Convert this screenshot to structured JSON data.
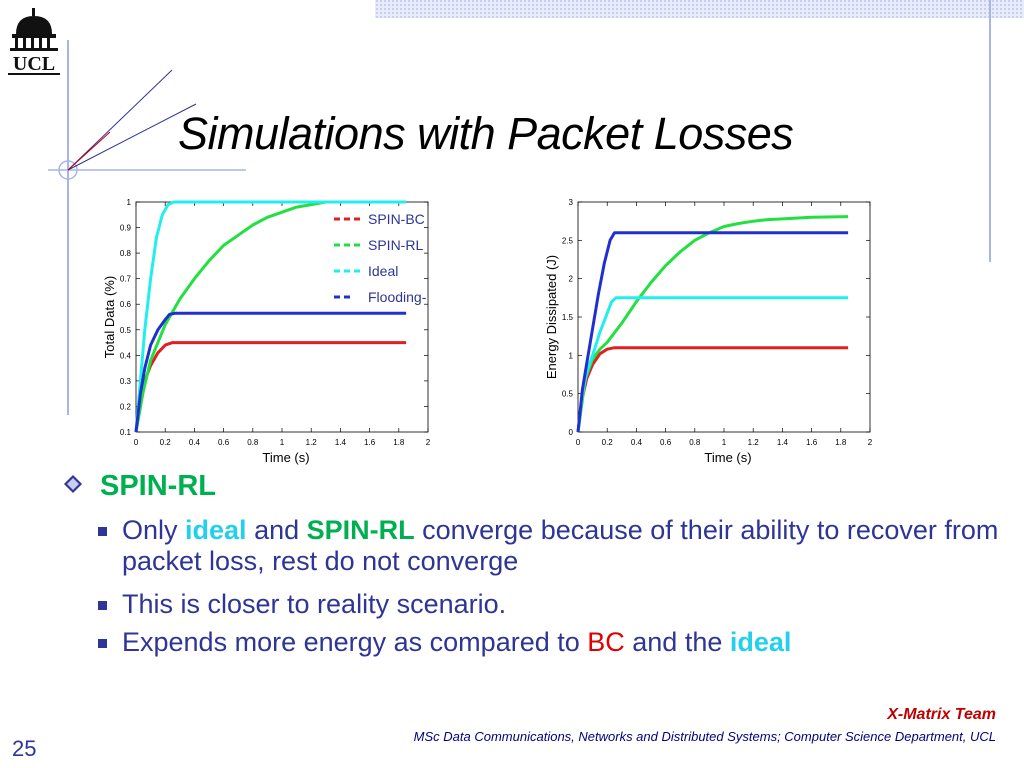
{
  "slide": {
    "title": "Simulations with Packet Losses",
    "logo_text": "UCL",
    "page_number": "25",
    "footer_team": "X-Matrix Team",
    "footer_course": "MSc Data Communications, Networks and Distributed Systems; Computer Science Department, UCL"
  },
  "bullets": {
    "heading": "SPIN-RL",
    "item1_part1": "Only ",
    "item1_hl1": "ideal",
    "item1_part2": " and ",
    "item1_hl2": "SPIN-RL",
    "item1_part3": " converge because of their ability to recover from packet loss, rest do not converge",
    "item2": "This is closer to reality scenario.",
    "item3_part1": "Expends more energy as compared to ",
    "item3_hl1": "BC",
    "item3_part2": " and the ",
    "item3_hl2": "ideal"
  },
  "colors": {
    "spin_bc": "#e02020",
    "spin_rl": "#22e040",
    "ideal": "#22eeee",
    "flooding": "#2030d0"
  },
  "chart_data": [
    {
      "type": "line",
      "xlabel": "Time (s)",
      "ylabel": "Total Data (%)",
      "xlim": [
        0,
        2
      ],
      "ylim": [
        0.1,
        1
      ],
      "xticks": [
        "0",
        "0.2",
        "0.4",
        "0.6",
        "0.8",
        "1",
        "1.2",
        "1.4",
        "1.6",
        "1.8",
        "2"
      ],
      "yticks": [
        "0.1",
        "0.2",
        "0.3",
        "0.4",
        "0.5",
        "0.6",
        "0.7",
        "0.8",
        "0.9",
        "1"
      ],
      "legend": [
        "SPIN-BC",
        "SPIN-RL",
        "Ideal",
        "Flooding-"
      ],
      "series": [
        {
          "name": "SPIN-BC",
          "color": "#e02020",
          "x": [
            0,
            0.03,
            0.06,
            0.1,
            0.15,
            0.2,
            0.25,
            0.4,
            0.8,
            1.2,
            1.6,
            1.85
          ],
          "y": [
            0.1,
            0.22,
            0.3,
            0.36,
            0.41,
            0.44,
            0.45,
            0.45,
            0.45,
            0.45,
            0.45,
            0.45
          ]
        },
        {
          "name": "SPIN-RL",
          "color": "#22e040",
          "x": [
            0,
            0.05,
            0.1,
            0.15,
            0.2,
            0.3,
            0.4,
            0.5,
            0.6,
            0.7,
            0.8,
            0.9,
            1.0,
            1.1,
            1.2,
            1.3,
            1.4,
            1.6,
            1.85
          ],
          "y": [
            0.1,
            0.26,
            0.38,
            0.45,
            0.52,
            0.62,
            0.7,
            0.77,
            0.83,
            0.87,
            0.91,
            0.94,
            0.96,
            0.98,
            0.99,
            1.0,
            1.0,
            1.0,
            1.0
          ]
        },
        {
          "name": "Ideal",
          "color": "#22eeee",
          "x": [
            0,
            0.03,
            0.06,
            0.1,
            0.14,
            0.18,
            0.22,
            0.26,
            0.5,
            1.0,
            1.5,
            1.85
          ],
          "y": [
            0.1,
            0.3,
            0.5,
            0.7,
            0.86,
            0.95,
            0.99,
            1.0,
            1.0,
            1.0,
            1.0,
            1.0
          ]
        },
        {
          "name": "Flooding-",
          "color": "#2030d0",
          "x": [
            0,
            0.03,
            0.06,
            0.1,
            0.15,
            0.2,
            0.23,
            0.27,
            0.5,
            1.0,
            1.5,
            1.85
          ],
          "y": [
            0.1,
            0.25,
            0.35,
            0.44,
            0.5,
            0.54,
            0.56,
            0.565,
            0.565,
            0.565,
            0.565,
            0.565
          ]
        }
      ]
    },
    {
      "type": "line",
      "xlabel": "Time (s)",
      "ylabel": "Energy Dissipated (J)",
      "xlim": [
        0,
        2
      ],
      "ylim": [
        0,
        3
      ],
      "xticks": [
        "0",
        "0.2",
        "0.4",
        "0.6",
        "0.8",
        "1",
        "1.2",
        "1.4",
        "1.6",
        "1.8",
        "2"
      ],
      "yticks": [
        "0",
        "0.5",
        "1",
        "1.5",
        "2",
        "2.5",
        "3"
      ],
      "series": [
        {
          "name": "SPIN-BC",
          "color": "#e02020",
          "x": [
            0,
            0.03,
            0.06,
            0.1,
            0.15,
            0.2,
            0.25,
            0.4,
            0.8,
            1.2,
            1.6,
            1.85
          ],
          "y": [
            0,
            0.45,
            0.7,
            0.88,
            1.02,
            1.08,
            1.1,
            1.1,
            1.1,
            1.1,
            1.1,
            1.1
          ]
        },
        {
          "name": "SPIN-RL",
          "color": "#22e040",
          "x": [
            0,
            0.05,
            0.1,
            0.15,
            0.2,
            0.3,
            0.4,
            0.5,
            0.6,
            0.7,
            0.8,
            0.9,
            1.0,
            1.1,
            1.2,
            1.3,
            1.4,
            1.6,
            1.85
          ],
          "y": [
            0,
            0.7,
            0.95,
            1.08,
            1.17,
            1.42,
            1.7,
            1.95,
            2.17,
            2.35,
            2.5,
            2.6,
            2.68,
            2.72,
            2.75,
            2.77,
            2.78,
            2.8,
            2.81
          ]
        },
        {
          "name": "Ideal",
          "color": "#22eeee",
          "x": [
            0,
            0.03,
            0.06,
            0.1,
            0.15,
            0.2,
            0.23,
            0.26,
            0.5,
            1.0,
            1.5,
            1.85
          ],
          "y": [
            0,
            0.5,
            0.78,
            1.0,
            1.3,
            1.55,
            1.7,
            1.75,
            1.75,
            1.75,
            1.75,
            1.75
          ]
        },
        {
          "name": "Flooding-",
          "color": "#2030d0",
          "x": [
            0,
            0.03,
            0.06,
            0.1,
            0.14,
            0.18,
            0.22,
            0.25,
            0.3,
            0.5,
            1.0,
            1.5,
            1.85
          ],
          "y": [
            0,
            0.55,
            0.9,
            1.35,
            1.8,
            2.2,
            2.5,
            2.6,
            2.6,
            2.6,
            2.6,
            2.6,
            2.6
          ]
        }
      ]
    }
  ]
}
